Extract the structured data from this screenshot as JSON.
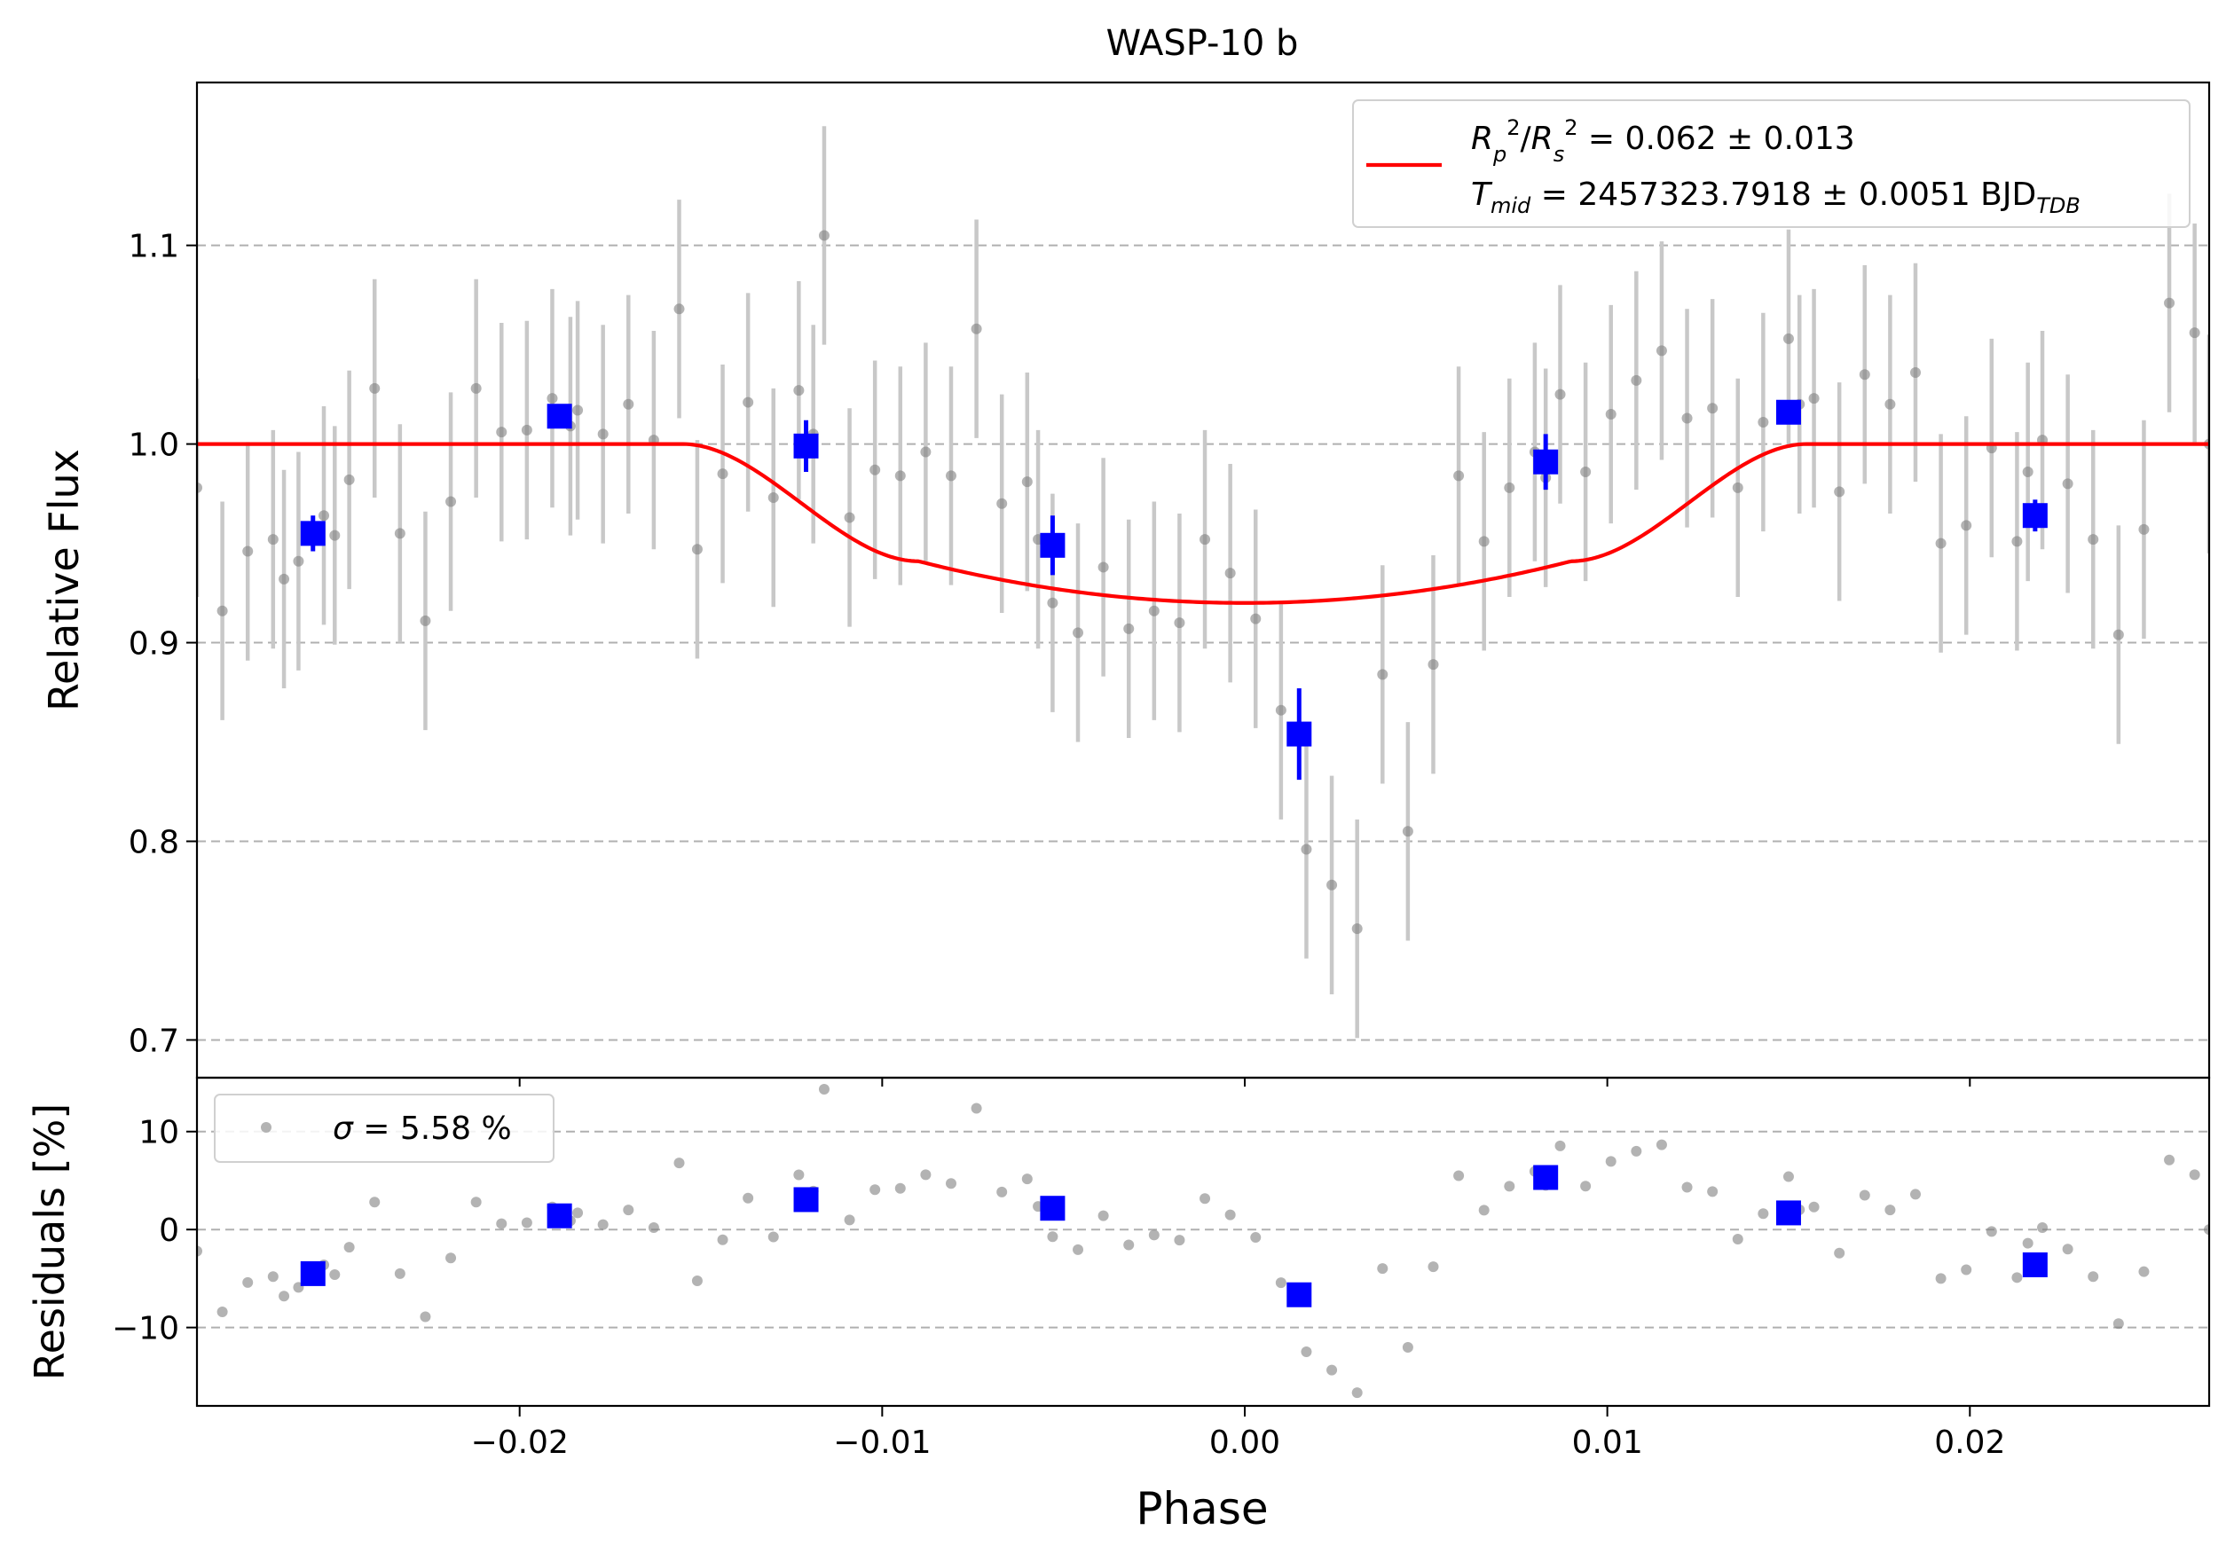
{
  "figure": {
    "title": "WASP-10 b",
    "grid": true
  },
  "colors": {
    "raw_points": "#808080",
    "raw_errorbars": "#c8c8c8",
    "binned": "#0000ff",
    "model": "#ff0000",
    "grid": "#b0b0b0",
    "axes": "#000000"
  },
  "chart_data": [
    {
      "type": "scatter",
      "name": "light-curve",
      "title": "WASP-10 b",
      "xlabel": "",
      "ylabel": "Relative Flux",
      "xlim": [
        -0.0289,
        0.0266
      ],
      "ylim": [
        0.681,
        1.182
      ],
      "yticks": [
        0.7,
        0.8,
        0.9,
        1.0,
        1.1
      ],
      "ytick_labels": [
        "0.7",
        "0.8",
        "0.9",
        "1.0",
        "1.1"
      ],
      "legend": {
        "placement": "upper right",
        "line1": "R_p^2/R_s^2 = 0.062 ± 0.013",
        "line2": "T_mid = 2457323.7918 ± 0.0051 BJD_TDB"
      },
      "model": {
        "name": "transit model",
        "depth": 0.062,
        "t1": -0.0155,
        "t2": -0.009,
        "t3": 0.009,
        "t4": 0.0155,
        "min_flux": 0.92,
        "flux_at_t2": 0.941
      },
      "raw_error": 0.055,
      "raw_x": [
        -0.0289,
        -0.0282,
        -0.0275,
        -0.0268,
        -0.0265,
        -0.0261,
        -0.0254,
        -0.0251,
        -0.0247,
        -0.024,
        -0.0233,
        -0.0226,
        -0.0219,
        -0.0212,
        -0.0205,
        -0.0198,
        -0.0191,
        -0.0186,
        -0.0184,
        -0.0177,
        -0.017,
        -0.0163,
        -0.0156,
        -0.0151,
        -0.0144,
        -0.0137,
        -0.013,
        -0.0123,
        -0.0119,
        -0.0116,
        -0.0109,
        -0.0102,
        -0.0095,
        -0.0088,
        -0.0081,
        -0.0074,
        -0.0067,
        -0.006,
        -0.0057,
        -0.0053,
        -0.0046,
        -0.0039,
        -0.0032,
        -0.0025,
        -0.0018,
        -0.0011,
        -0.0004,
        0.0003,
        0.001,
        0.0017,
        0.0024,
        0.0031,
        0.0038,
        0.0045,
        0.0052,
        0.0059,
        0.0066,
        0.0073,
        0.008,
        0.0083,
        0.0087,
        0.0094,
        0.0101,
        0.0108,
        0.0115,
        0.0122,
        0.0129,
        0.0136,
        0.0143,
        0.015,
        0.0153,
        0.0157,
        0.0164,
        0.0171,
        0.0178,
        0.0185,
        0.0192,
        0.0199,
        0.0206,
        0.0213,
        0.0216,
        0.022,
        0.0227,
        0.0234,
        0.0241,
        0.0248,
        0.0255,
        0.0262,
        0.0266
      ],
      "raw_y": [
        0.978,
        0.916,
        0.946,
        0.952,
        0.932,
        0.941,
        0.964,
        0.954,
        0.982,
        1.028,
        0.955,
        0.911,
        0.971,
        1.028,
        1.006,
        1.007,
        1.023,
        1.009,
        1.017,
        1.005,
        1.02,
        1.002,
        1.068,
        0.947,
        0.985,
        1.021,
        0.973,
        1.027,
        1.005,
        1.105,
        0.963,
        0.987,
        0.984,
        0.996,
        0.984,
        1.058,
        0.97,
        0.981,
        0.952,
        0.92,
        0.905,
        0.938,
        0.907,
        0.916,
        0.91,
        0.952,
        0.935,
        0.912,
        0.866,
        0.796,
        0.778,
        0.756,
        0.884,
        0.805,
        0.889,
        0.984,
        0.951,
        0.978,
        0.996,
        0.983,
        1.025,
        0.986,
        1.015,
        1.032,
        1.047,
        1.013,
        1.018,
        0.978,
        1.011,
        1.053,
        1.02,
        1.023,
        0.976,
        1.035,
        1.02,
        1.036,
        0.95,
        0.959,
        0.998,
        0.951,
        0.986,
        1.002,
        0.98,
        0.952,
        0.904,
        0.957,
        1.071,
        1.056,
        1.0
      ],
      "binned_x": [
        -0.0257,
        -0.0189,
        -0.0121,
        -0.0053,
        0.0015,
        0.0083,
        0.015,
        0.0218
      ],
      "binned_y": [
        0.955,
        1.014,
        0.999,
        0.949,
        0.854,
        0.991,
        1.016,
        0.964
      ],
      "binned_err": [
        0.009,
        0.006,
        0.013,
        0.015,
        0.023,
        0.014,
        0.005,
        0.008
      ]
    },
    {
      "type": "scatter",
      "name": "residuals",
      "xlabel": "Phase",
      "ylabel": "Residuals [%]",
      "xlim": [
        -0.0289,
        0.0266
      ],
      "ylim": [
        -18.0,
        15.5
      ],
      "xticks": [
        -0.02,
        -0.01,
        0.0,
        0.01,
        0.02
      ],
      "xtick_labels": [
        "−0.02",
        "−0.01",
        "0.00",
        "0.01",
        "0.02"
      ],
      "yticks": [
        -10,
        0,
        10
      ],
      "ytick_labels": [
        "−10",
        "0",
        "10"
      ],
      "legend": {
        "placement": "upper left",
        "label": "σ = 5.58 %"
      }
    }
  ]
}
